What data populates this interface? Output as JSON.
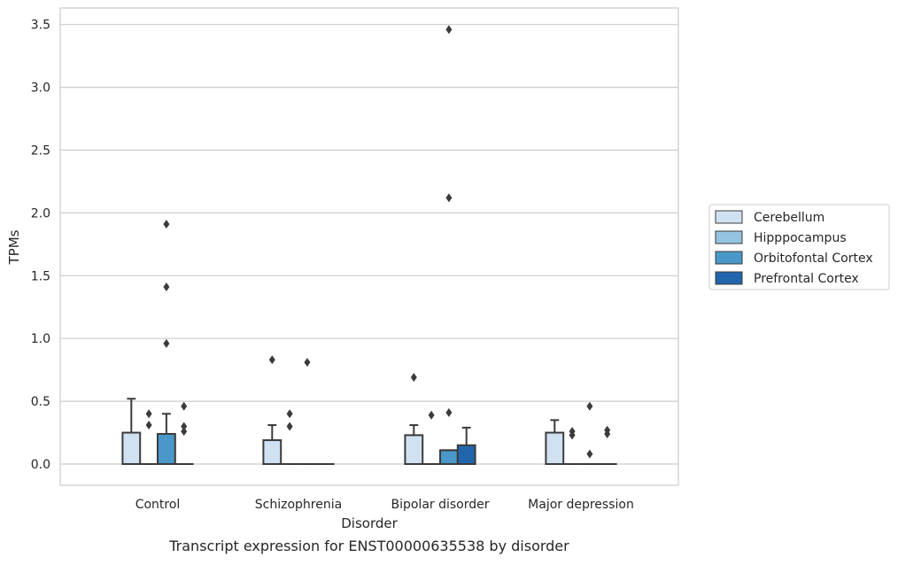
{
  "chart_data": {
    "type": "boxplot",
    "title": "Transcript expression for ENST00000635538 by disorder",
    "xlabel": "Disorder",
    "ylabel": "TPMs",
    "ylim": [
      -0.17,
      3.64
    ],
    "yticks": [
      0.0,
      0.5,
      1.0,
      1.5,
      2.0,
      2.5,
      3.0,
      3.5
    ],
    "ytick_labels": [
      "0.0",
      "0.5",
      "1.0",
      "1.5",
      "2.0",
      "2.5",
      "3.0",
      "3.5"
    ],
    "grid": "horizontal",
    "legend_placement": "center-right outside",
    "categories": [
      "Control",
      "Schizophrenia",
      "Bipolar disorder",
      "Major depression"
    ],
    "series": [
      {
        "name": "Cerebellum",
        "color": "#d0e1f2",
        "boxes": [
          {
            "q1": 0.0,
            "median": 0.0,
            "q3": 0.25,
            "whisker_low": 0.0,
            "whisker_high": 0.52,
            "outliers": []
          },
          {
            "q1": 0.0,
            "median": 0.0,
            "q3": 0.19,
            "whisker_low": 0.0,
            "whisker_high": 0.31,
            "outliers": [
              0.83
            ]
          },
          {
            "q1": 0.0,
            "median": 0.0,
            "q3": 0.23,
            "whisker_low": 0.0,
            "whisker_high": 0.31,
            "outliers": [
              0.69
            ]
          },
          {
            "q1": 0.0,
            "median": 0.0,
            "q3": 0.25,
            "whisker_low": 0.0,
            "whisker_high": 0.35,
            "outliers": []
          }
        ]
      },
      {
        "name": "Hipppocampus",
        "color": "#94c4df",
        "boxes": [
          {
            "q1": 0.0,
            "median": 0.0,
            "q3": 0.0,
            "whisker_low": 0.0,
            "whisker_high": 0.0,
            "outliers": [
              0.31,
              0.4
            ]
          },
          {
            "q1": 0.0,
            "median": 0.0,
            "q3": 0.0,
            "whisker_low": 0.0,
            "whisker_high": 0.0,
            "outliers": [
              0.3,
              0.4
            ]
          },
          {
            "q1": 0.0,
            "median": 0.0,
            "q3": 0.0,
            "whisker_low": 0.0,
            "whisker_high": 0.0,
            "outliers": [
              0.39
            ]
          },
          {
            "q1": 0.0,
            "median": 0.0,
            "q3": 0.0,
            "whisker_low": 0.0,
            "whisker_high": 0.0,
            "outliers": [
              0.23,
              0.26
            ]
          }
        ]
      },
      {
        "name": "Orbitofontal Cortex",
        "color": "#4a98c9",
        "boxes": [
          {
            "q1": 0.0,
            "median": 0.0,
            "q3": 0.24,
            "whisker_low": 0.0,
            "whisker_high": 0.4,
            "outliers": [
              0.96,
              1.41,
              1.91
            ]
          },
          {
            "q1": 0.0,
            "median": 0.0,
            "q3": 0.0,
            "whisker_low": 0.0,
            "whisker_high": 0.0,
            "outliers": [
              0.81
            ]
          },
          {
            "q1": 0.0,
            "median": 0.11,
            "q3": 0.11,
            "whisker_low": 0.0,
            "whisker_high": 0.11,
            "outliers": [
              0.41,
              2.12,
              3.46
            ]
          },
          {
            "q1": 0.0,
            "median": 0.0,
            "q3": 0.0,
            "whisker_low": 0.0,
            "whisker_high": 0.0,
            "outliers": [
              0.08,
              0.46
            ]
          }
        ]
      },
      {
        "name": "Prefrontal Cortex",
        "color": "#2166ac",
        "boxes": [
          {
            "q1": 0.0,
            "median": 0.0,
            "q3": 0.0,
            "whisker_low": 0.0,
            "whisker_high": 0.0,
            "outliers": [
              0.26,
              0.3,
              0.46
            ]
          },
          {
            "q1": 0.0,
            "median": 0.0,
            "q3": 0.0,
            "whisker_low": 0.0,
            "whisker_high": 0.0,
            "outliers": []
          },
          {
            "q1": 0.0,
            "median": 0.0,
            "q3": 0.15,
            "whisker_low": 0.0,
            "whisker_high": 0.29,
            "outliers": []
          },
          {
            "q1": 0.0,
            "median": 0.0,
            "q3": 0.0,
            "whisker_low": 0.0,
            "whisker_high": 0.0,
            "outliers": [
              0.24,
              0.27
            ]
          }
        ]
      }
    ]
  }
}
